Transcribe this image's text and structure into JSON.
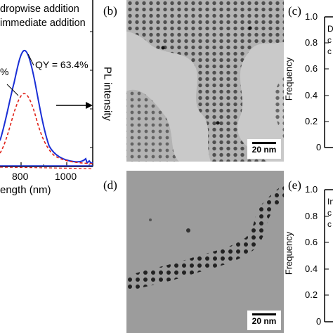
{
  "panel_a": {
    "legend": [
      "dropwise addition",
      "immediate addition"
    ],
    "annotations": {
      "qy": "QY = 63.4%",
      "qy_partial": "%"
    },
    "xlabel_partial": "ength (nm)",
    "xticks": [
      "800",
      "1000"
    ],
    "colors": {
      "dropwise": "#1a2fd6",
      "immediate": "#e0241b"
    }
  },
  "panel_b": {
    "letter": "(b)",
    "scalebar": "20 nm"
  },
  "panel_c": {
    "letter": "(c)",
    "ylabel": "Frequency",
    "yticks": [
      "1.0",
      "0.8",
      "0.6",
      "0.4",
      "0.2",
      "0"
    ],
    "inset_text_partial": [
      "D",
      "c",
      "c"
    ]
  },
  "panel_d": {
    "letter": "(d)",
    "scalebar": "20 nm"
  },
  "panel_e": {
    "letter": "(e)",
    "ylabel": "Frequency",
    "yticks": [
      "1.0",
      "0.8",
      "0.6",
      "0.4",
      "0.2",
      "0"
    ],
    "inset_text_partial": [
      "In",
      "c",
      "c"
    ]
  },
  "pl_label": "PL intensity"
}
